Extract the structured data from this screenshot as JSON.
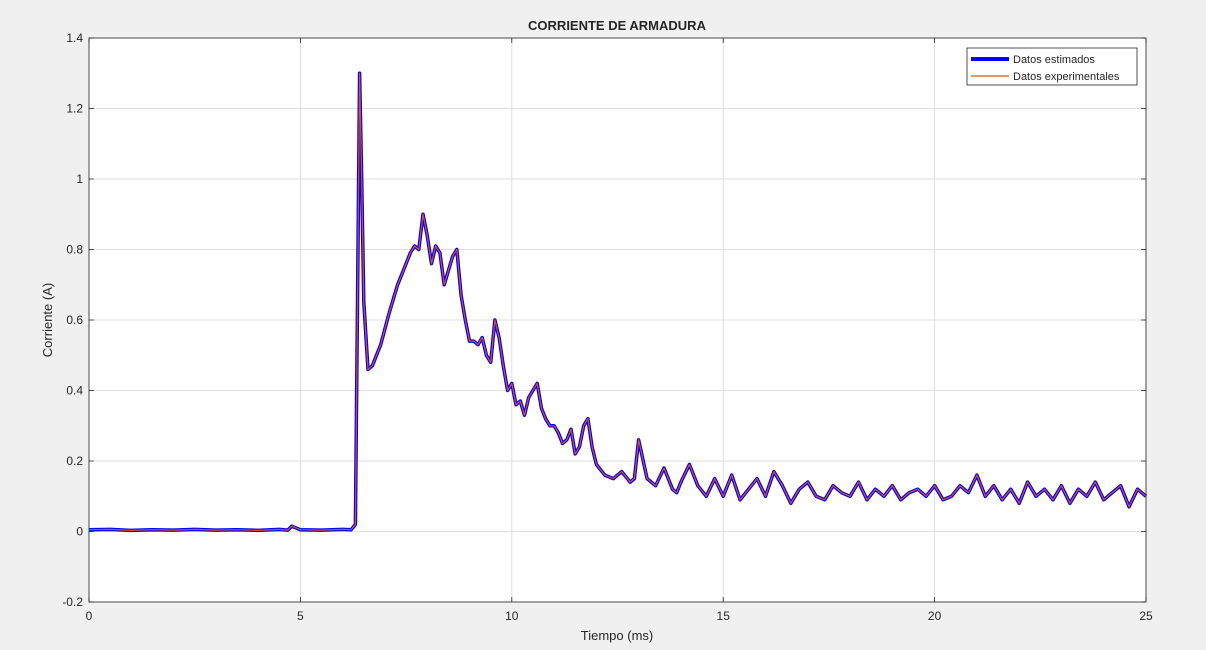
{
  "chart_data": {
    "type": "line",
    "title": "CORRIENTE DE ARMADURA",
    "xlabel": "Tiempo (ms)",
    "ylabel": "Corriente (A)",
    "xlim": [
      0,
      25
    ],
    "ylim": [
      -0.2,
      1.4
    ],
    "xticks": [
      0,
      5,
      10,
      15,
      20,
      25
    ],
    "yticks": [
      -0.2,
      0,
      0.2,
      0.4,
      0.6,
      0.8,
      1,
      1.2,
      1.4
    ],
    "xtick_labels": [
      "0",
      "5",
      "10",
      "15",
      "20",
      "25"
    ],
    "ytick_labels": [
      "-0.2",
      "0",
      "0.2",
      "0.4",
      "0.6",
      "0.8",
      "1",
      "1.2",
      "1.4"
    ],
    "grid": true,
    "legend_position": "top-right",
    "series": [
      {
        "name": "Datos estimados",
        "color": "#0000ff",
        "x": [
          0,
          0.5,
          1.0,
          1.5,
          2.0,
          2.5,
          3.0,
          3.5,
          4.0,
          4.5,
          4.7,
          4.8,
          5.0,
          5.5,
          6.0,
          6.2,
          6.3,
          6.35,
          6.4,
          6.45,
          6.5,
          6.6,
          6.7,
          6.9,
          7.1,
          7.3,
          7.5,
          7.6,
          7.7,
          7.8,
          7.9,
          8.0,
          8.1,
          8.2,
          8.3,
          8.4,
          8.5,
          8.6,
          8.7,
          8.8,
          8.9,
          9.0,
          9.1,
          9.2,
          9.3,
          9.4,
          9.5,
          9.6,
          9.7,
          9.8,
          9.9,
          10.0,
          10.1,
          10.2,
          10.3,
          10.4,
          10.5,
          10.6,
          10.7,
          10.8,
          10.9,
          11.0,
          11.1,
          11.2,
          11.3,
          11.4,
          11.5,
          11.6,
          11.7,
          11.8,
          11.9,
          12.0,
          12.2,
          12.4,
          12.6,
          12.8,
          12.9,
          13.0,
          13.2,
          13.4,
          13.6,
          13.8,
          13.9,
          14.0,
          14.2,
          14.4,
          14.6,
          14.8,
          15.0,
          15.2,
          15.4,
          15.6,
          15.8,
          16.0,
          16.2,
          16.4,
          16.6,
          16.8,
          17.0,
          17.2,
          17.4,
          17.6,
          17.8,
          18.0,
          18.2,
          18.4,
          18.6,
          18.8,
          19.0,
          19.2,
          19.4,
          19.6,
          19.8,
          20.0,
          20.2,
          20.4,
          20.6,
          20.8,
          21.0,
          21.2,
          21.4,
          21.6,
          21.8,
          22.0,
          22.2,
          22.4,
          22.6,
          22.8,
          23.0,
          23.2,
          23.4,
          23.6,
          23.8,
          24.0,
          24.2,
          24.4,
          24.6,
          24.8,
          25.0
        ],
        "values": [
          0.005,
          0.006,
          0.003,
          0.005,
          0.004,
          0.006,
          0.004,
          0.005,
          0.003,
          0.006,
          0.004,
          0.015,
          0.005,
          0.004,
          0.006,
          0.005,
          0.02,
          0.65,
          1.3,
          1.0,
          0.65,
          0.46,
          0.47,
          0.53,
          0.62,
          0.7,
          0.76,
          0.79,
          0.81,
          0.8,
          0.9,
          0.84,
          0.76,
          0.81,
          0.79,
          0.7,
          0.74,
          0.78,
          0.8,
          0.67,
          0.6,
          0.54,
          0.54,
          0.53,
          0.55,
          0.5,
          0.48,
          0.6,
          0.55,
          0.47,
          0.4,
          0.42,
          0.36,
          0.37,
          0.33,
          0.38,
          0.4,
          0.42,
          0.35,
          0.32,
          0.3,
          0.3,
          0.28,
          0.25,
          0.26,
          0.29,
          0.22,
          0.24,
          0.3,
          0.32,
          0.24,
          0.19,
          0.16,
          0.15,
          0.17,
          0.14,
          0.15,
          0.26,
          0.15,
          0.13,
          0.18,
          0.12,
          0.11,
          0.14,
          0.19,
          0.13,
          0.1,
          0.15,
          0.1,
          0.16,
          0.09,
          0.12,
          0.15,
          0.1,
          0.17,
          0.13,
          0.08,
          0.12,
          0.14,
          0.1,
          0.09,
          0.13,
          0.11,
          0.1,
          0.14,
          0.09,
          0.12,
          0.1,
          0.13,
          0.09,
          0.11,
          0.12,
          0.1,
          0.13,
          0.09,
          0.1,
          0.13,
          0.11,
          0.16,
          0.1,
          0.13,
          0.09,
          0.12,
          0.08,
          0.14,
          0.1,
          0.12,
          0.09,
          0.13,
          0.08,
          0.12,
          0.1,
          0.14,
          0.09,
          0.11,
          0.13,
          0.07,
          0.12,
          0.1
        ]
      },
      {
        "name": "Datos experimentales",
        "color": "#d95319",
        "x": [
          0,
          0.5,
          1.0,
          1.5,
          2.0,
          2.5,
          3.0,
          3.5,
          4.0,
          4.5,
          4.7,
          4.8,
          5.0,
          5.5,
          6.0,
          6.2,
          6.3,
          6.35,
          6.4,
          6.45,
          6.5,
          6.6,
          6.7,
          6.9,
          7.1,
          7.3,
          7.5,
          7.6,
          7.7,
          7.8,
          7.9,
          8.0,
          8.1,
          8.2,
          8.3,
          8.4,
          8.5,
          8.6,
          8.7,
          8.8,
          8.9,
          9.0,
          9.1,
          9.2,
          9.3,
          9.4,
          9.5,
          9.6,
          9.7,
          9.8,
          9.9,
          10.0,
          10.1,
          10.2,
          10.3,
          10.4,
          10.5,
          10.6,
          10.7,
          10.8,
          10.9,
          11.0,
          11.1,
          11.2,
          11.3,
          11.4,
          11.5,
          11.6,
          11.7,
          11.8,
          11.9,
          12.0,
          12.2,
          12.4,
          12.6,
          12.8,
          12.9,
          13.0,
          13.2,
          13.4,
          13.6,
          13.8,
          13.9,
          14.0,
          14.2,
          14.4,
          14.6,
          14.8,
          15.0,
          15.2,
          15.4,
          15.6,
          15.8,
          16.0,
          16.2,
          16.4,
          16.6,
          16.8,
          17.0,
          17.2,
          17.4,
          17.6,
          17.8,
          18.0,
          18.2,
          18.4,
          18.6,
          18.8,
          19.0,
          19.2,
          19.4,
          19.6,
          19.8,
          20.0,
          20.2,
          20.4,
          20.6,
          20.8,
          21.0,
          21.2,
          21.4,
          21.6,
          21.8,
          22.0,
          22.2,
          22.4,
          22.6,
          22.8,
          23.0,
          23.2,
          23.4,
          23.6,
          23.8,
          24.0,
          24.2,
          24.4,
          24.6,
          24.8,
          25.0
        ],
        "values": [
          0.005,
          0.006,
          0.003,
          0.005,
          0.004,
          0.006,
          0.004,
          0.005,
          0.003,
          0.006,
          0.004,
          0.015,
          0.005,
          0.004,
          0.006,
          0.005,
          0.02,
          0.65,
          1.3,
          1.0,
          0.65,
          0.46,
          0.47,
          0.53,
          0.62,
          0.7,
          0.76,
          0.79,
          0.81,
          0.8,
          0.9,
          0.84,
          0.76,
          0.81,
          0.79,
          0.7,
          0.74,
          0.78,
          0.8,
          0.67,
          0.6,
          0.54,
          0.54,
          0.53,
          0.55,
          0.5,
          0.48,
          0.6,
          0.55,
          0.47,
          0.4,
          0.42,
          0.36,
          0.37,
          0.33,
          0.38,
          0.4,
          0.42,
          0.35,
          0.32,
          0.3,
          0.3,
          0.28,
          0.25,
          0.26,
          0.29,
          0.22,
          0.24,
          0.3,
          0.32,
          0.24,
          0.19,
          0.16,
          0.15,
          0.17,
          0.14,
          0.15,
          0.26,
          0.15,
          0.13,
          0.18,
          0.12,
          0.11,
          0.14,
          0.19,
          0.13,
          0.1,
          0.15,
          0.1,
          0.16,
          0.09,
          0.12,
          0.15,
          0.1,
          0.17,
          0.13,
          0.08,
          0.12,
          0.14,
          0.1,
          0.09,
          0.13,
          0.11,
          0.1,
          0.14,
          0.09,
          0.12,
          0.1,
          0.13,
          0.09,
          0.11,
          0.12,
          0.1,
          0.13,
          0.09,
          0.1,
          0.13,
          0.11,
          0.16,
          0.1,
          0.13,
          0.09,
          0.12,
          0.08,
          0.14,
          0.1,
          0.12,
          0.09,
          0.13,
          0.08,
          0.12,
          0.1,
          0.14,
          0.09,
          0.11,
          0.13,
          0.07,
          0.12,
          0.1
        ]
      }
    ]
  }
}
